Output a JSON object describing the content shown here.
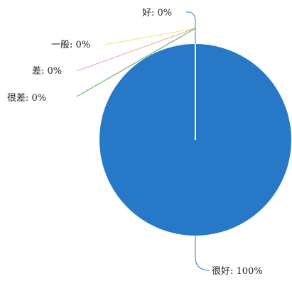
{
  "chart_data": {
    "type": "pie",
    "title": "",
    "categories": [
      "很好",
      "好",
      "一般",
      "差",
      "很差"
    ],
    "values": [
      100,
      0,
      0,
      0,
      0
    ],
    "labels": [
      "很好: 100%",
      "好: 0%",
      "一般: 0%",
      "差: 0%",
      "很差: 0%"
    ],
    "colors": [
      "#2878c8",
      "#2878c8",
      "#f2e36b",
      "#f0a8a0",
      "#4caf50"
    ],
    "legend": "none"
  }
}
